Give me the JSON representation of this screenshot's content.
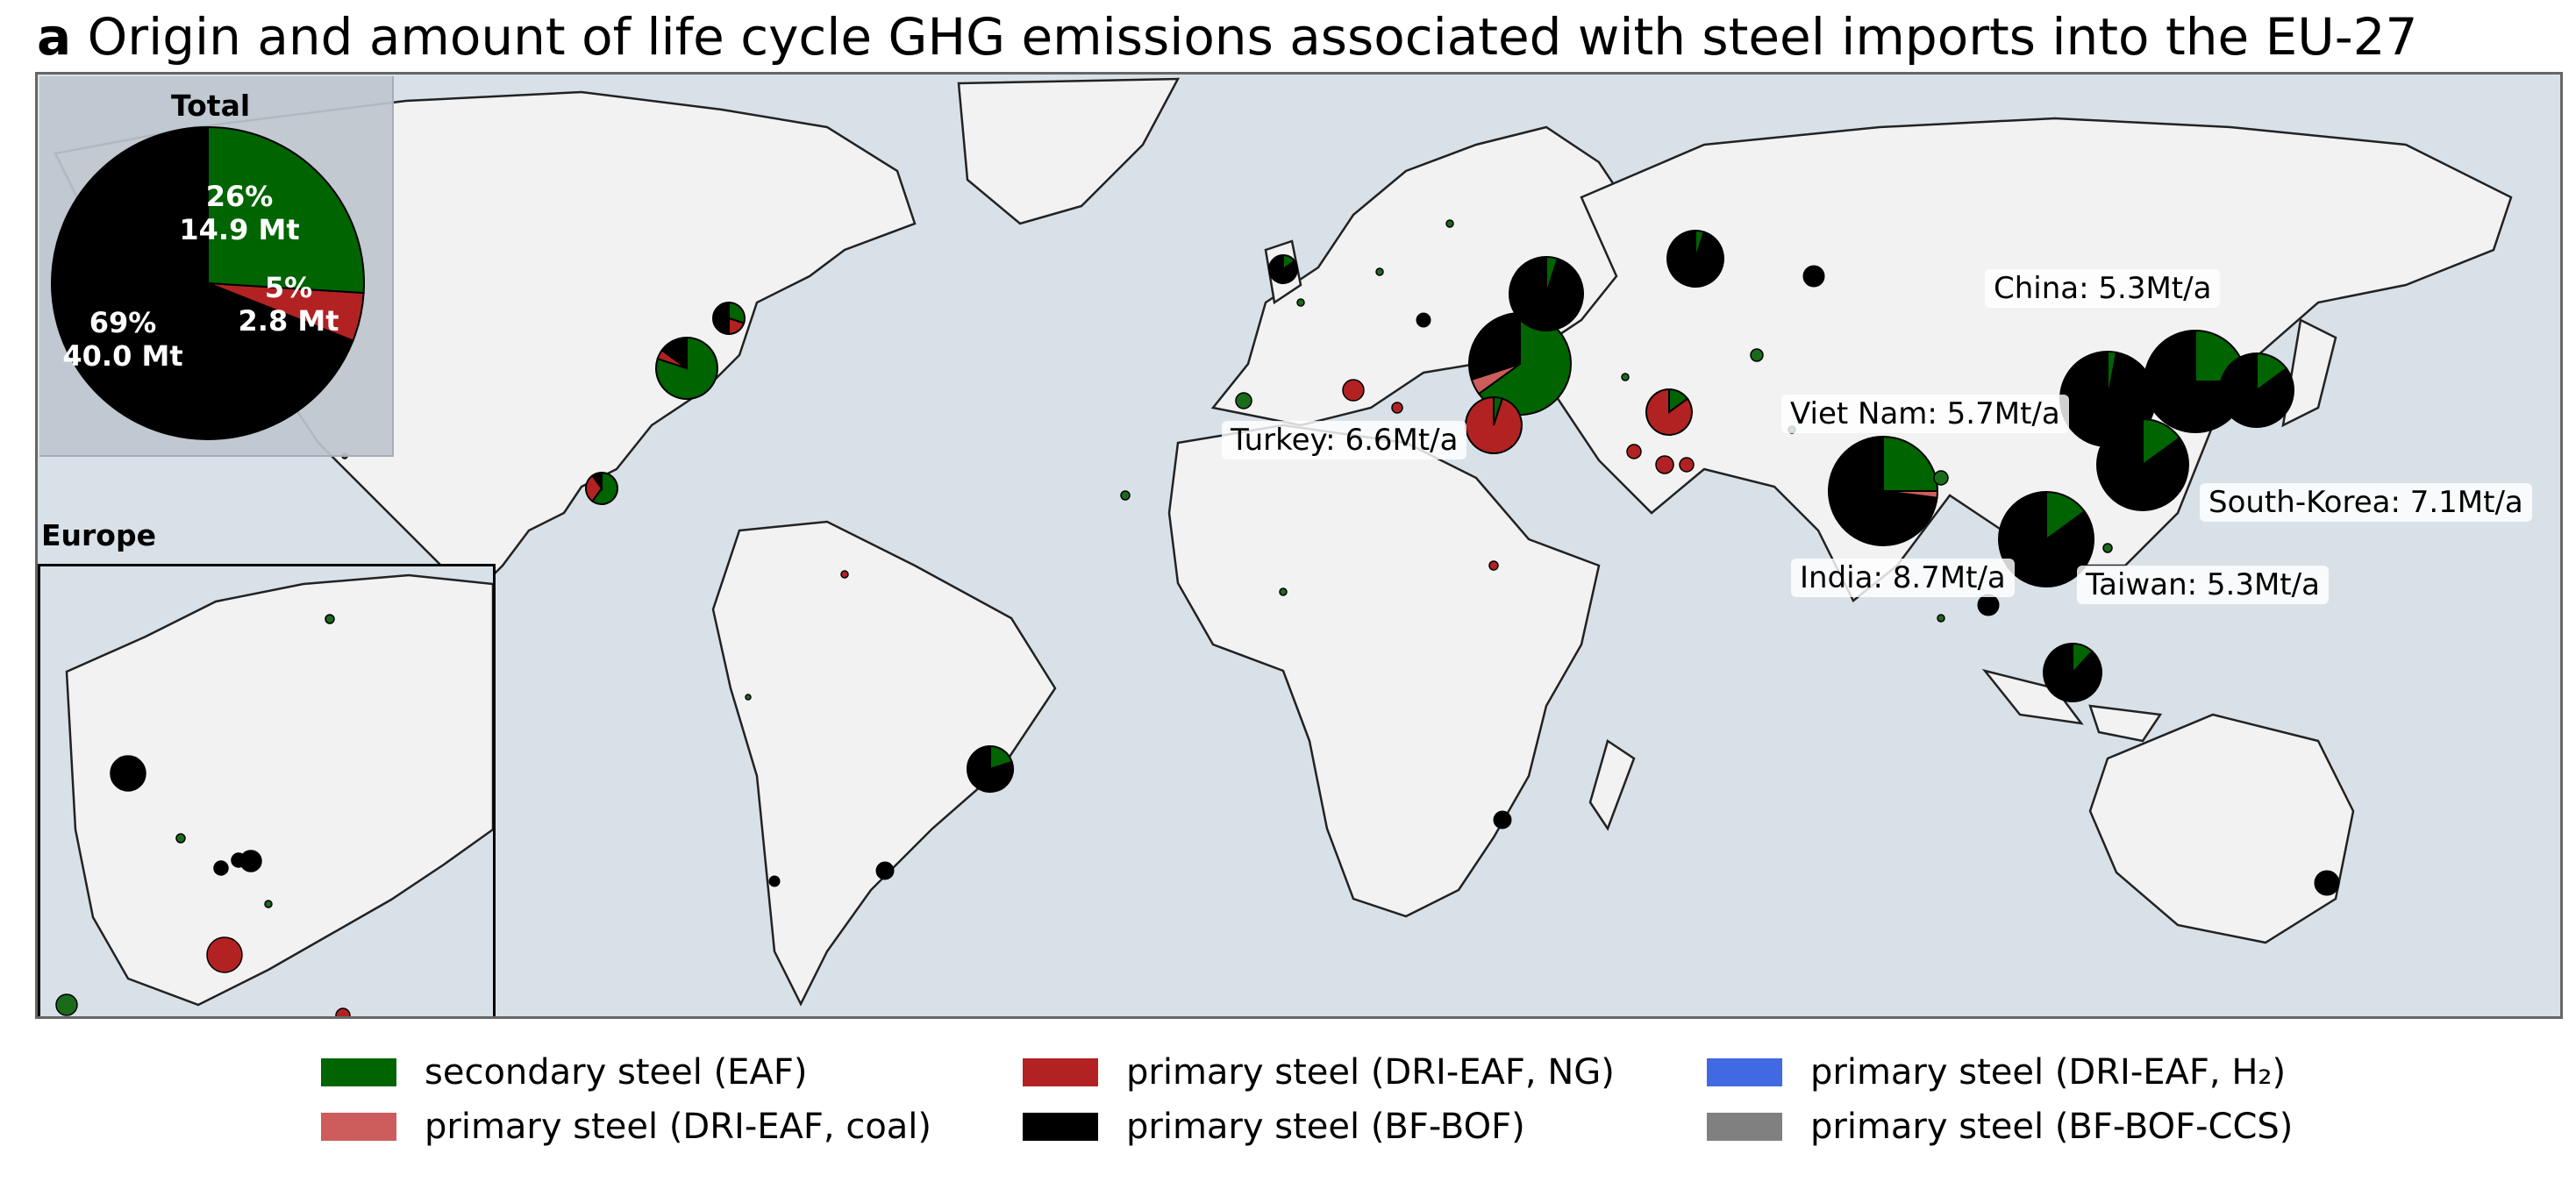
{
  "title": {
    "panel_letter": "a",
    "text": "Origin and amount of life cycle GHG emissions associated with steel imports into the EU-27"
  },
  "inset_total": {
    "title": "Total",
    "slices": [
      {
        "label": "26%\n14.9 Mt",
        "pct_text": "26%",
        "mt_text": "14.9 Mt",
        "value": 26,
        "color": "#006400"
      },
      {
        "label": "5%\n2.8 Mt",
        "pct_text": "5%",
        "mt_text": "2.8 Mt",
        "value": 5,
        "color": "#b22222"
      },
      {
        "label": "69%\n40.0 Mt",
        "pct_text": "69%",
        "mt_text": "40.0 Mt",
        "value": 69,
        "color": "#000000"
      }
    ]
  },
  "inset_europe": {
    "title": "Europe"
  },
  "country_labels": [
    {
      "text": "China: 5.3Mt/a"
    },
    {
      "text": "Viet Nam: 5.7Mt/a"
    },
    {
      "text": "Turkey: 6.6Mt/a"
    },
    {
      "text": "South-Korea: 7.1Mt/a"
    },
    {
      "text": "India: 8.7Mt/a"
    },
    {
      "text": "Taiwan: 5.3Mt/a"
    }
  ],
  "pies": [
    {
      "name": "turkey",
      "shares": [
        0.65,
        0.05,
        0.0,
        0.3
      ]
    },
    {
      "name": "egypt",
      "shares": [
        0.05,
        0.0,
        0.95,
        0.0
      ]
    },
    {
      "name": "ukraine",
      "shares": [
        0.05,
        0.0,
        0.0,
        0.95
      ]
    },
    {
      "name": "russia",
      "shares": [
        0.05,
        0.0,
        0.0,
        0.95
      ]
    },
    {
      "name": "india",
      "shares": [
        0.25,
        0.02,
        0.0,
        0.73
      ]
    },
    {
      "name": "vietnam",
      "shares": [
        0.15,
        0.0,
        0.0,
        0.85
      ]
    },
    {
      "name": "china",
      "shares": [
        0.03,
        0.0,
        0.0,
        0.97
      ]
    },
    {
      "name": "korea",
      "shares": [
        0.25,
        0.0,
        0.0,
        0.75
      ]
    },
    {
      "name": "japan",
      "shares": [
        0.15,
        0.0,
        0.0,
        0.85
      ]
    },
    {
      "name": "taiwan",
      "shares": [
        0.15,
        0.0,
        0.0,
        0.85
      ]
    },
    {
      "name": "indonesia",
      "shares": [
        0.12,
        0.0,
        0.0,
        0.88
      ]
    },
    {
      "name": "usa",
      "shares": [
        0.8,
        0.0,
        0.05,
        0.15
      ]
    },
    {
      "name": "canada",
      "shares": [
        0.3,
        0.0,
        0.2,
        0.5
      ]
    },
    {
      "name": "mexico",
      "shares": [
        0.6,
        0.0,
        0.3,
        0.1
      ]
    },
    {
      "name": "brazil",
      "shares": [
        0.2,
        0.0,
        0.0,
        0.8
      ]
    },
    {
      "name": "iran",
      "shares": [
        0.15,
        0.0,
        0.85,
        0.0
      ]
    },
    {
      "name": "uk",
      "shares": [
        0.15,
        0.0,
        0.0,
        0.85
      ]
    }
  ],
  "legend": [
    {
      "label": "secondary steel (EAF)",
      "color": "#006400"
    },
    {
      "label": "primary steel (DRI-EAF, NG)",
      "color": "#b22222"
    },
    {
      "label": "primary steel (DRI-EAF, H₂)",
      "color": "#4169e1"
    },
    {
      "label": "primary steel (DRI-EAF, coal)",
      "color": "#cd5c5c"
    },
    {
      "label": "primary steel (BF-BOF)",
      "color": "#000000"
    },
    {
      "label": "primary steel (BF-BOF-CCS)",
      "color": "#808080"
    }
  ]
}
